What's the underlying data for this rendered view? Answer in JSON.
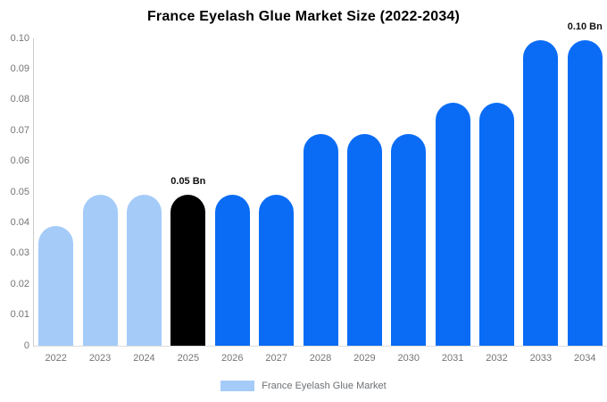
{
  "title": "France Eyelash Glue Market Size (2022-2034)",
  "colors": {
    "background": "#ffffff",
    "light_blue": "#a5cbf8",
    "black": "#000000",
    "blue": "#0a6cf5",
    "axis_line": "#cccccc",
    "baseline": "#dddddd",
    "tick_text": "#757575",
    "annotation_text": "#111111",
    "legend_text": "#6d7175"
  },
  "chart_data": {
    "type": "bar",
    "title": "France Eyelash Glue Market Size (2022-2034)",
    "xlabel": "",
    "ylabel": "",
    "unit": "Bn",
    "categories": [
      "2022",
      "2023",
      "2024",
      "2025",
      "2026",
      "2027",
      "2028",
      "2029",
      "2030",
      "2031",
      "2032",
      "2033",
      "2034"
    ],
    "values": [
      0.039,
      0.049,
      0.049,
      0.049,
      0.049,
      0.049,
      0.069,
      0.069,
      0.069,
      0.079,
      0.079,
      0.0995,
      0.0995
    ],
    "bar_colors": [
      "#a5cbf8",
      "#a5cbf8",
      "#a5cbf8",
      "#000000",
      "#0a6cf5",
      "#0a6cf5",
      "#0a6cf5",
      "#0a6cf5",
      "#0a6cf5",
      "#0a6cf5",
      "#0a6cf5",
      "#0a6cf5",
      "#0a6cf5"
    ],
    "annotations": [
      {
        "index": 3,
        "text": "0.05 Bn"
      },
      {
        "index": 12,
        "text": "0.10 Bn"
      }
    ],
    "ylim": [
      0,
      0.1
    ],
    "yticks": [
      "0",
      "0.01",
      "0.02",
      "0.03",
      "0.04",
      "0.05",
      "0.06",
      "0.07",
      "0.08",
      "0.09",
      "0.10"
    ],
    "grid": "off",
    "legend": {
      "position": "bottom",
      "entries": [
        {
          "label": "France Eyelash Glue Market",
          "color": "#a5cbf8"
        }
      ]
    }
  }
}
